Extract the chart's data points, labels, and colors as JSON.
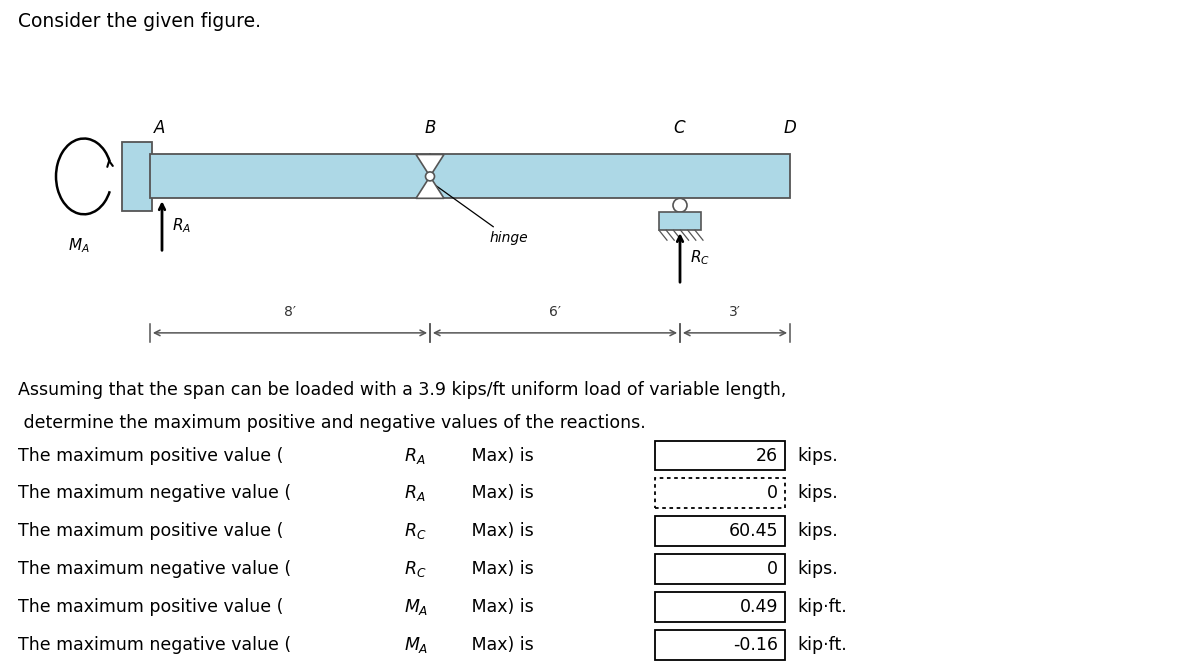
{
  "title": "Consider the given figure.",
  "beam_color": "#add8e6",
  "beam_edge_color": "#555555",
  "background": "#ffffff",
  "results": [
    {
      "polarity": "positive",
      "reaction": "R_A",
      "value": "26",
      "unit": "kips.",
      "box_style": "solid"
    },
    {
      "polarity": "negative",
      "reaction": "R_A",
      "value": "0",
      "unit": "kips.",
      "box_style": "dotted"
    },
    {
      "polarity": "positive",
      "reaction": "R_C",
      "value": "60.45",
      "unit": "kips.",
      "box_style": "solid"
    },
    {
      "polarity": "negative",
      "reaction": "R_C",
      "value": "0",
      "unit": "kips.",
      "box_style": "solid"
    },
    {
      "polarity": "positive",
      "reaction": "M_A",
      "value": "0.49",
      "unit": "kip·ft.",
      "box_style": "solid"
    },
    {
      "polarity": "negative",
      "reaction": "M_A",
      "value": "-0.16",
      "unit": "kip·ft.",
      "box_style": "solid"
    }
  ],
  "para_line1": "Assuming that the span can be loaded with a 3.9 kips/ft uniform load of variable length,",
  "para_line2": " determine the maximum positive and negative values of the reactions."
}
